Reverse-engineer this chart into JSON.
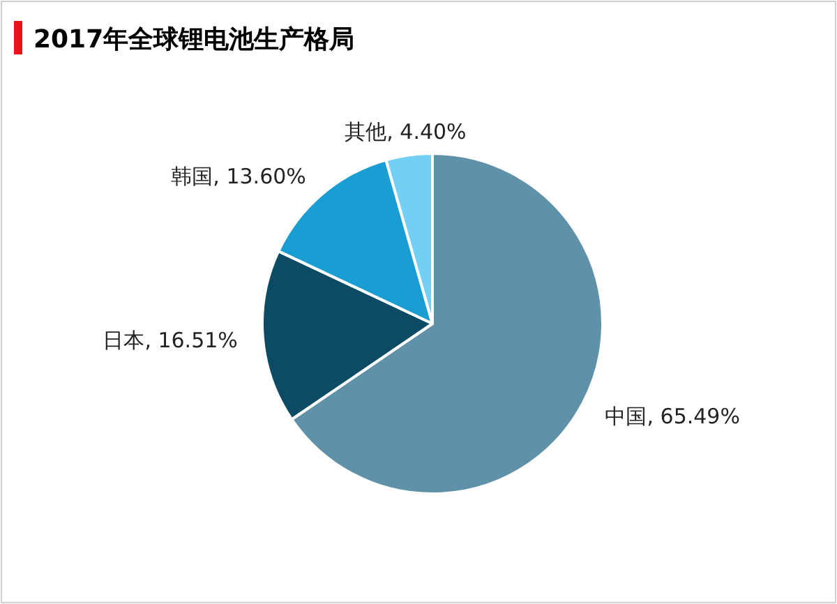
{
  "chart_data": {
    "type": "pie",
    "title": "2017年全球锂电池生产格局",
    "categories": [
      "中国",
      "日本",
      "韩国",
      "其他"
    ],
    "values": [
      65.49,
      16.51,
      13.6,
      4.4
    ],
    "value_labels": [
      ", 65.49%",
      ", 16.51%",
      ", 13.60%",
      ", 4.40%"
    ],
    "colors": [
      "#5f91a8",
      "#0d4b64",
      "#1a9dd3",
      "#72d0f4"
    ]
  }
}
